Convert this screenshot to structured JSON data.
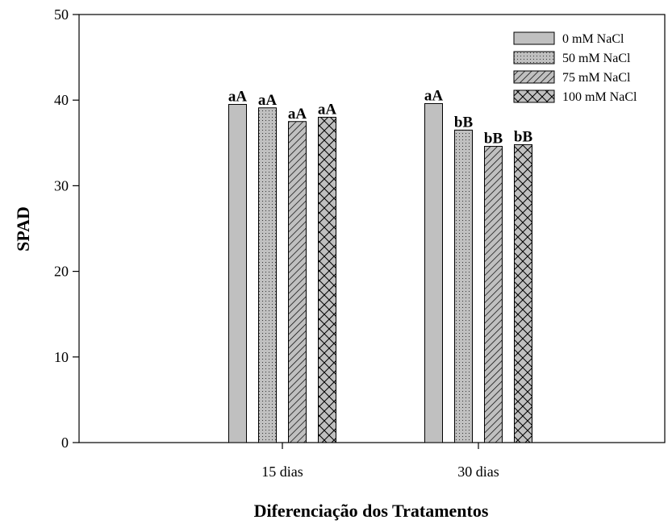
{
  "chart_data": {
    "type": "bar",
    "title": "",
    "xlabel": "Diferenciação dos Tratamentos",
    "ylabel": "SPAD",
    "ylim": [
      0,
      50
    ],
    "yticks": [
      0,
      10,
      20,
      30,
      40,
      50
    ],
    "categories": [
      "15 dias",
      "30 dias"
    ],
    "grid": false,
    "legend_position": "top-right",
    "series": [
      {
        "name": "0 mM NaCl",
        "values": [
          39.5,
          39.6
        ],
        "labels": [
          "aA",
          "aA"
        ],
        "pattern": "solid-gray"
      },
      {
        "name": "50 mM NaCl",
        "values": [
          39.1,
          36.5
        ],
        "labels": [
          "aA",
          "bB"
        ],
        "pattern": "dots"
      },
      {
        "name": "75 mM NaCl",
        "values": [
          37.5,
          34.6
        ],
        "labels": [
          "aA",
          "bB"
        ],
        "pattern": "diagonal"
      },
      {
        "name": "100 mM NaCl",
        "values": [
          38.0,
          34.8
        ],
        "labels": [
          "aA",
          "bB"
        ],
        "pattern": "crosshatch"
      }
    ],
    "colors": {
      "bar_fill": "#c0c0c0",
      "stroke": "#000000"
    }
  }
}
